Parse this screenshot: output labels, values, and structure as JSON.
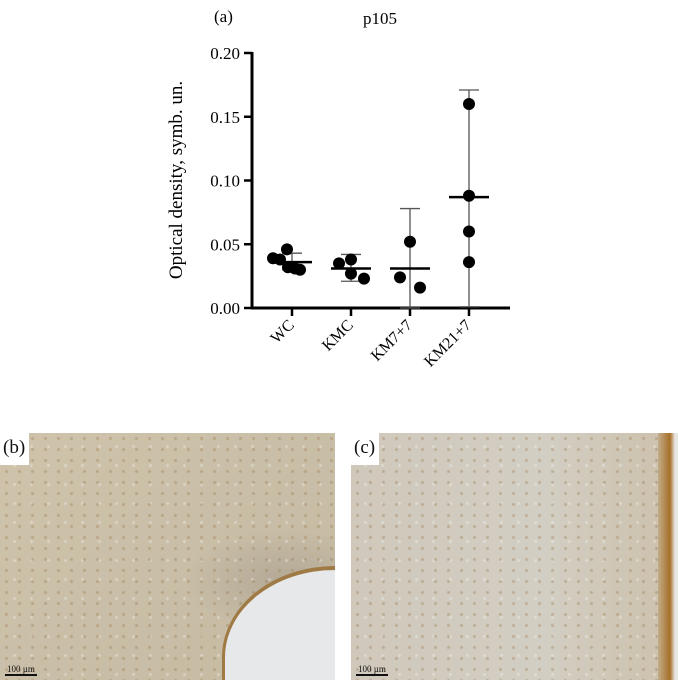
{
  "panel_labels": {
    "a": "(a)",
    "b": "(b)",
    "c": "(c)"
  },
  "scale_bar": "100 µm",
  "chart_data": {
    "type": "scatter",
    "title": "p105",
    "ylabel": "Optical density, symb. un.",
    "xlabel": "",
    "ylim": [
      0,
      0.2
    ],
    "yticks": [
      "0.00",
      "0.05",
      "0.10",
      "0.15",
      "0.20"
    ],
    "categories": [
      "WC",
      "KMC",
      "KM7+7",
      "KM21+7"
    ],
    "grid": false,
    "groups": [
      {
        "category": "WC",
        "points": [
          0.039,
          0.038,
          0.046,
          0.032,
          0.031,
          0.03
        ],
        "mean": 0.036,
        "err_low": 0.03,
        "err_high": 0.043
      },
      {
        "category": "KMC",
        "points": [
          0.035,
          0.038,
          0.027,
          0.023
        ],
        "mean": 0.031,
        "err_low": 0.021,
        "err_high": 0.042
      },
      {
        "category": "KM7+7",
        "points": [
          0.024,
          0.052,
          0.016
        ],
        "mean": 0.031,
        "err_low": 0.0,
        "err_high": 0.078
      },
      {
        "category": "KM21+7",
        "points": [
          0.16,
          0.088,
          0.06,
          0.036
        ],
        "mean": 0.087,
        "err_low": 0.001,
        "err_high": 0.171
      }
    ],
    "colors": {
      "points": "#000000",
      "axis": "#000000",
      "errorbar": "#555555"
    }
  }
}
